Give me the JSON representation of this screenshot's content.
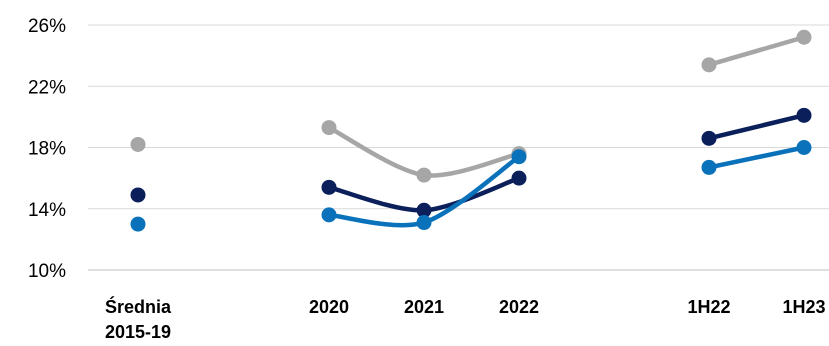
{
  "chart_data": {
    "type": "line",
    "title": "",
    "xlabel": "",
    "ylabel": "",
    "ylim": [
      10,
      26
    ],
    "yticks": [
      10,
      14,
      18,
      22,
      26
    ],
    "ytick_labels": [
      "10%",
      "14%",
      "18%",
      "22%",
      "26%"
    ],
    "grid": true,
    "legend": "none",
    "categories": [
      {
        "line1": "Średnia",
        "line2": "2015-19"
      },
      {
        "line1": "2020",
        "line2": ""
      },
      {
        "line1": "2021",
        "line2": ""
      },
      {
        "line1": "2022",
        "line2": ""
      },
      {
        "line1": "1H22",
        "line2": ""
      },
      {
        "line1": "1H23",
        "line2": ""
      }
    ],
    "segments": [
      [
        1,
        2,
        3
      ],
      [
        4,
        5
      ]
    ],
    "series": [
      {
        "color": "#A6A6A6",
        "values": [
          18.2,
          19.3,
          16.2,
          17.6,
          23.4,
          25.2
        ]
      },
      {
        "color": "#0B1F5B",
        "values": [
          14.9,
          15.4,
          13.9,
          16.0,
          18.6,
          20.1
        ]
      },
      {
        "color": "#0A72BA",
        "values": [
          13.0,
          13.6,
          13.1,
          17.4,
          16.7,
          18.0
        ]
      }
    ]
  }
}
